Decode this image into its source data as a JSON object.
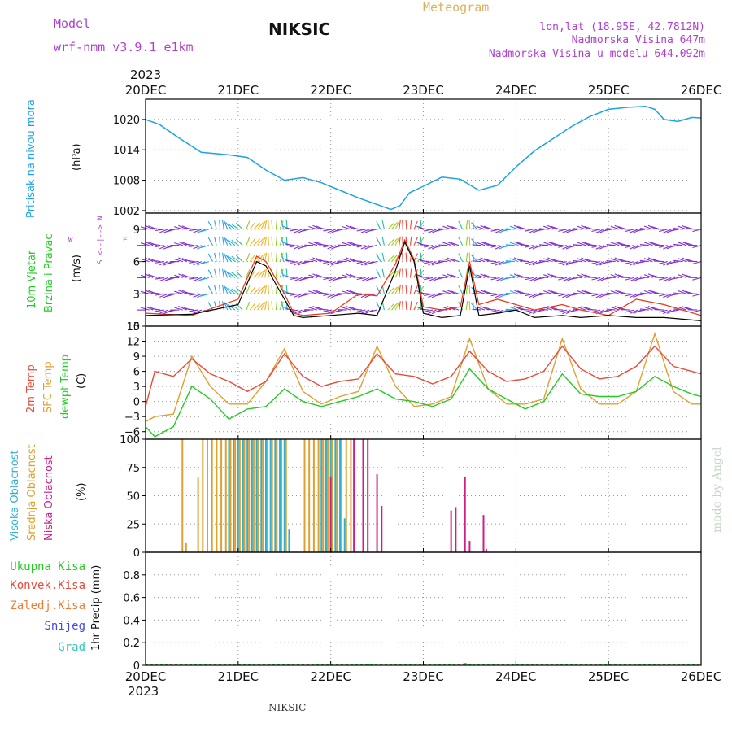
{
  "header": {
    "model_label": "Model",
    "model_name": "wrf-nmm_v3.9.1  e1km",
    "title": "NIKSIC",
    "meteogram_label": "Meteogram",
    "location": "lon,lat (18.95E, 42.7812N)",
    "elevation": "Nadmorska Visina 647m",
    "model_elevation": "Nadmorska Visina u modelu 644.092m",
    "year_top": "2023",
    "year_bottom": "2023",
    "footer_station": "NIKSIC",
    "watermark": "made by Angel"
  },
  "colors": {
    "pressure": "#1aa3e6",
    "temp2m": "#e84a3c",
    "sfc": "#e0a030",
    "dew": "#22cc22",
    "cloud_high": "#30b0d0",
    "cloud_mid": "#e0a030",
    "cloud_low": "#cc1f8a",
    "wind_line": "#000000",
    "gust": "#ee3311",
    "purple": "#b040d0",
    "header_gold": "#e0b060"
  },
  "x_axis": {
    "ticks": [
      "20DEC",
      "21DEC",
      "22DEC",
      "23DEC",
      "24DEC",
      "25DEC",
      "26DEC"
    ]
  },
  "panels": {
    "pressure": {
      "label": "Pritisak na nivou mora",
      "unit": "(hPa)"
    },
    "wind": {
      "label_1": "10m Vjetar",
      "label_2": "Brzina i Pravac",
      "unit": "(m/s)",
      "compass_ns": "S <--|--> N",
      "compass_w": "W",
      "compass_e": "E"
    },
    "temp": {
      "label_2m": "2m Temp",
      "label_sfc": "SFC Temp",
      "label_dew": "dewpt Temp",
      "unit": "(C)"
    },
    "cloud": {
      "label_high": "Visoka Oblacnost",
      "label_mid": "Srednja Oblacnost",
      "label_low": "Niska Oblacnost",
      "unit": "(%)"
    },
    "precip": {
      "legend": [
        "Ukupna Kisa",
        "Konvek.Kisa",
        "Zaledj.Kisa",
        "Snijeg",
        "Grad"
      ],
      "legend_colors": [
        "#22cc22",
        "#e84a3c",
        "#f07a30",
        "#4848e0",
        "#30c8c0"
      ],
      "unit": "1hr Precip (mm)"
    }
  },
  "chart_data": [
    {
      "type": "line",
      "name": "sea level pressure",
      "ylabel": "(hPa)",
      "ylim": [
        1001.5,
        1024
      ],
      "yticks": [
        "1002",
        "1008",
        "1014",
        "1020"
      ],
      "ytick_values": [
        1002,
        1008,
        1014,
        1020
      ],
      "x": [
        0,
        0.15,
        0.35,
        0.6,
        0.9,
        1.1,
        1.3,
        1.5,
        1.7,
        1.9,
        2.1,
        2.3,
        2.5,
        2.65,
        2.75,
        2.85,
        3.0,
        3.2,
        3.4,
        3.6,
        3.8,
        4.0,
        4.2,
        4.4,
        4.6,
        4.8,
        5.0,
        5.2,
        5.4,
        5.5,
        5.6,
        5.75,
        5.9,
        6.0
      ],
      "series": [
        {
          "values": [
            1020,
            1019,
            1016.5,
            1013.5,
            1013,
            1012.5,
            1010,
            1008,
            1008.5,
            1007.5,
            1006,
            1004.5,
            1003.2,
            1002.2,
            1003,
            1005.5,
            1006.8,
            1008.6,
            1008.2,
            1006,
            1007,
            1010.6,
            1013.8,
            1016.2,
            1018.6,
            1020.6,
            1022,
            1022.4,
            1022.6,
            1022,
            1020,
            1019.6,
            1020.4,
            1020.3
          ]
        }
      ]
    },
    {
      "type": "line",
      "name": "10m wind",
      "ylabel": "(m/s)",
      "ylim": [
        0,
        10.5
      ],
      "yticks": [
        "0",
        "3",
        "6",
        "9"
      ],
      "ytick_values": [
        0,
        3,
        6,
        9
      ],
      "x": [
        0,
        0.5,
        1.0,
        1.2,
        1.3,
        1.4,
        1.5,
        1.6,
        1.7,
        2.0,
        2.3,
        2.5,
        2.7,
        2.8,
        2.9,
        3.0,
        3.2,
        3.4,
        3.5,
        3.6,
        3.8,
        4.0,
        4.2,
        4.5,
        4.7,
        5.0,
        5.3,
        5.6,
        6.0
      ],
      "series": [
        {
          "name": "wind speed",
          "values": [
            1.0,
            1.1,
            2.0,
            6.0,
            5.6,
            4.0,
            2.5,
            1.0,
            0.8,
            1.0,
            1.2,
            1.0,
            5.2,
            7.8,
            6.0,
            1.2,
            0.8,
            1.0,
            5.6,
            1.0,
            1.2,
            1.5,
            0.8,
            1.0,
            0.8,
            1.0,
            0.8,
            0.8,
            0.5
          ]
        },
        {
          "name": "gust",
          "values": [
            1.2,
            1.0,
            2.5,
            6.5,
            6.0,
            4.5,
            3.0,
            1.2,
            1.0,
            1.2,
            3.0,
            2.8,
            5.8,
            8.0,
            6.2,
            1.8,
            1.5,
            1.8,
            6.0,
            2.0,
            2.5,
            2.0,
            1.5,
            2.0,
            1.5,
            1.0,
            2.5,
            2.0,
            1.0
          ]
        }
      ]
    },
    {
      "type": "line",
      "name": "temperature",
      "ylabel": "(C)",
      "ylim": [
        -7.5,
        15
      ],
      "yticks": [
        "−6",
        "−3",
        "0",
        "3",
        "6",
        "9",
        "12",
        "15"
      ],
      "ytick_values": [
        -6,
        -3,
        0,
        3,
        6,
        9,
        12,
        15
      ],
      "x": [
        0,
        0.1,
        0.3,
        0.5,
        0.7,
        0.9,
        1.1,
        1.3,
        1.5,
        1.7,
        1.9,
        2.1,
        2.3,
        2.5,
        2.7,
        2.9,
        3.1,
        3.3,
        3.5,
        3.7,
        3.9,
        4.1,
        4.3,
        4.5,
        4.7,
        4.9,
        5.1,
        5.3,
        5.5,
        5.7,
        5.9,
        6.0
      ],
      "series": [
        {
          "name": "2m Temp",
          "values": [
            -1,
            6,
            5,
            8.5,
            5.5,
            4,
            2,
            4,
            9.5,
            5,
            3,
            4,
            4.5,
            9.5,
            5.5,
            5,
            3.5,
            5,
            10,
            6,
            4,
            4.5,
            6,
            11,
            6.5,
            4.5,
            5,
            7,
            11,
            7,
            6,
            5.5
          ]
        },
        {
          "name": "SFC Temp",
          "values": [
            -4,
            -3,
            -2.5,
            9,
            3,
            -0.5,
            -0.5,
            4,
            10.5,
            2,
            -0.5,
            1,
            2,
            11,
            3,
            -1,
            -0.5,
            1,
            12.5,
            2.5,
            -0.5,
            -0.5,
            0.5,
            12.5,
            2.5,
            -0.5,
            -0.5,
            2,
            13.5,
            2,
            -0.5,
            -0.5
          ]
        },
        {
          "name": "dewpt Temp",
          "values": [
            -5,
            -7,
            -5,
            3,
            0.5,
            -3.5,
            -1.5,
            -1,
            2.5,
            0,
            -1,
            0,
            1,
            2.5,
            0.5,
            0,
            -1,
            0.5,
            6.5,
            2.5,
            0.5,
            -1.5,
            0,
            5.5,
            1.5,
            1,
            1,
            2,
            5,
            3,
            1.5,
            1
          ]
        }
      ]
    },
    {
      "type": "bar",
      "name": "cloud cover",
      "ylabel": "(%)",
      "ylim": [
        0,
        100
      ],
      "yticks": [
        "0",
        "25",
        "50",
        "75",
        "100"
      ],
      "ytick_values": [
        0,
        25,
        50,
        75,
        100
      ],
      "series": [
        {
          "name": "Visoka Oblacnost",
          "x": [
            0.9,
            0.95,
            1.0,
            1.05,
            1.1,
            1.15,
            1.2,
            1.25,
            1.3,
            1.35,
            1.4,
            1.45,
            1.5,
            1.55,
            1.9,
            1.95,
            2.0,
            2.05,
            2.1,
            2.15
          ],
          "values": [
            100,
            100,
            100,
            100,
            100,
            100,
            100,
            100,
            100,
            100,
            100,
            100,
            100,
            20,
            100,
            100,
            100,
            100,
            100,
            30
          ]
        },
        {
          "name": "Srednja Oblacnost",
          "x": [
            0.38,
            0.42,
            0.55,
            0.6,
            0.65,
            0.7,
            0.75,
            0.8,
            0.85,
            0.9,
            0.95,
            1.0,
            1.05,
            1.1,
            1.15,
            1.2,
            1.25,
            1.3,
            1.35,
            1.4,
            1.45,
            1.5,
            1.7,
            1.75,
            1.8,
            1.85,
            1.9,
            1.95,
            2.0,
            2.05,
            2.1,
            2.15,
            2.2
          ],
          "values": [
            100,
            8,
            66,
            100,
            100,
            100,
            100,
            100,
            100,
            100,
            100,
            100,
            100,
            100,
            100,
            100,
            100,
            100,
            100,
            100,
            100,
            100,
            100,
            100,
            100,
            100,
            100,
            100,
            100,
            100,
            100,
            100,
            100
          ]
        },
        {
          "name": "Niska Oblacnost",
          "x": [
            2.25,
            2.35,
            2.4,
            2.5,
            2.55,
            3.3,
            3.35,
            3.45,
            3.5,
            3.65,
            3.68,
            2.0
          ],
          "values": [
            100,
            100,
            100,
            69,
            41,
            37,
            40,
            67,
            10,
            33,
            3,
            67
          ]
        }
      ]
    },
    {
      "type": "bar",
      "name": "1hr precipitation",
      "ylabel": "1hr Precip (mm)",
      "ylim": [
        0,
        1.0
      ],
      "yticks": [
        "0",
        "0.2",
        "0.4",
        "0.6",
        "0.8"
      ],
      "ytick_values": [
        0,
        0.2,
        0.4,
        0.6,
        0.8
      ],
      "series": [
        {
          "name": "Ukupna Kisa",
          "x": [
            2.4,
            3.45,
            3.5
          ],
          "values": [
            0.005,
            0.02,
            0.01
          ]
        }
      ]
    }
  ]
}
